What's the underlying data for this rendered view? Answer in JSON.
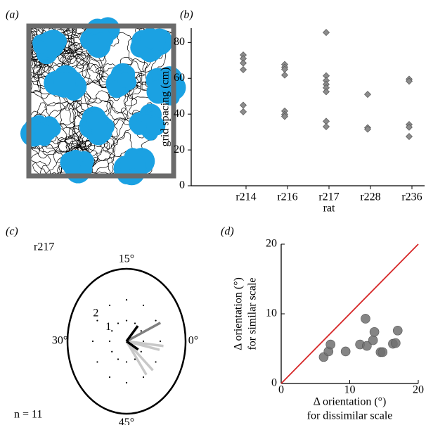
{
  "chart_data": [
    {
      "type": "trajectory",
      "panel_label": "(a)",
      "colors": {
        "path": "#000000",
        "field": "#1ba1e2",
        "frame": "#6b6b6b"
      }
    },
    {
      "type": "strip",
      "panel_label": "(b)",
      "xlabel": "rat",
      "ylabel": "grid spacing (cm)",
      "categories": [
        "r214",
        "r216",
        "r217",
        "r228",
        "r236"
      ],
      "values": [
        [
          73,
          71,
          68.5,
          64.8,
          45,
          41.3
        ],
        [
          67.7,
          66.2,
          65,
          61.8,
          41.7,
          39.8,
          38.7
        ],
        [
          85.6,
          61.4,
          58.8,
          56.6,
          54.7,
          52.5,
          36,
          33
        ],
        [
          51,
          32.4,
          31.6
        ],
        [
          59.5,
          58.4,
          34.2,
          32.7,
          27.5
        ]
      ],
      "color": "#8c8c8c",
      "ylim": [
        0,
        88
      ],
      "yticks": [
        0,
        20,
        40,
        60,
        80
      ]
    },
    {
      "type": "polar",
      "panel_label": "(c)",
      "title": "r217",
      "annotation": "n = 11",
      "theta_range": [
        0,
        60
      ],
      "thetaticks": [
        {
          "value": 0,
          "label": "0°"
        },
        {
          "value": 15,
          "label": "15°"
        },
        {
          "value": 30,
          "label": "30°"
        },
        {
          "value": 45,
          "label": "45°"
        }
      ],
      "rlim": [
        0,
        3.5
      ],
      "rticks": [
        1,
        2
      ],
      "orientations": [
        58,
        53,
        51,
        59,
        4,
        8,
        55
      ],
      "lengths": [
        2.0,
        2.1,
        2.0,
        2.2,
        2.2,
        1.0,
        0.8
      ],
      "colors": [
        "#c8c8c8",
        "#c8c8c8",
        "#c8c8c8",
        "#c8c8c8",
        "#808080",
        "#000000",
        "#000000"
      ]
    },
    {
      "type": "scatter",
      "panel_label": "(d)",
      "xlabel": [
        "Δ orientation (°)",
        "for dissimilar scale"
      ],
      "ylabel": [
        "Δ orientation (°)",
        "for similar scale"
      ],
      "x": [
        6.2,
        6.9,
        7.2,
        9.4,
        11.5,
        12.5,
        12.3,
        13.4,
        13.6,
        14.5,
        14.8,
        16.3,
        16.7,
        17.0
      ],
      "y": [
        3.8,
        4.6,
        5.6,
        4.6,
        5.6,
        5.4,
        9.3,
        6.2,
        7.4,
        4.5,
        4.5,
        5.7,
        5.8,
        7.6
      ],
      "color": "#707070",
      "xlim": [
        0,
        20
      ],
      "ylim": [
        0,
        20
      ],
      "xticks": [
        0,
        10,
        20
      ],
      "yticks": [
        0,
        10,
        20
      ],
      "identity_line": "#d62728"
    }
  ]
}
